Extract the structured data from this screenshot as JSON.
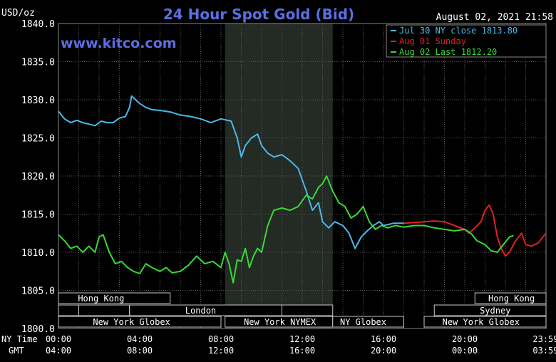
{
  "chart_data": {
    "type": "line",
    "title": "24 Hour Spot Gold (Bid)",
    "watermark": "www.kitco.com",
    "timestamp": "August 02, 2021 21:58",
    "ylabel": "USD/oz",
    "ylim": [
      1800,
      1840
    ],
    "yticks": [
      "1840.0",
      "1835.0",
      "1830.0",
      "1825.0",
      "1820.0",
      "1815.0",
      "1810.0",
      "1805.0",
      "1800.0"
    ],
    "xlim": [
      0,
      24
    ],
    "x_row_labels": {
      "ny": "NY Time",
      "gmt": "GMT"
    },
    "xticks": [
      {
        "h": 0,
        "ny": "00:00",
        "gmt": "04:00"
      },
      {
        "h": 4,
        "ny": "04:00",
        "gmt": "08:00"
      },
      {
        "h": 8,
        "ny": "08:00",
        "gmt": "12:00"
      },
      {
        "h": 12,
        "ny": "12:00",
        "gmt": "16:00"
      },
      {
        "h": 16,
        "ny": "16:00",
        "gmt": "20:00"
      },
      {
        "h": 20,
        "ny": "20:00",
        "gmt": "00:00"
      },
      {
        "h": 23.98,
        "ny": "23:59",
        "gmt": "03:59"
      }
    ],
    "grid": true,
    "legend_position": "top-right",
    "highlight_hours": [
      8.2,
      13.5
    ],
    "colors": {
      "background": "#000000",
      "grid": "#5a5a5a",
      "title": "#5b6ee1",
      "highlight": "#242a24",
      "session": "#000000",
      "session_border": "#c8c8c8",
      "text": "#ffffff"
    },
    "series": [
      {
        "name": "Jul 30 NY close 1813.80",
        "color": "#4db8e8",
        "x": [
          0,
          0.3,
          0.6,
          0.9,
          1.2,
          1.5,
          1.8,
          2.1,
          2.4,
          2.7,
          3.0,
          3.3,
          3.5,
          3.6,
          3.8,
          4.0,
          4.3,
          4.6,
          5.0,
          5.5,
          6.0,
          6.5,
          7.0,
          7.5,
          8.0,
          8.5,
          8.8,
          9.0,
          9.2,
          9.5,
          9.8,
          10.0,
          10.3,
          10.6,
          11.0,
          11.4,
          11.8,
          12.2,
          12.5,
          12.8,
          13.0,
          13.3,
          13.6,
          14.0,
          14.3,
          14.6,
          14.9,
          15.2,
          15.5,
          15.8,
          16.0,
          16.5,
          17.0
        ],
        "y": [
          1828.5,
          1827.5,
          1827.0,
          1827.3,
          1827.0,
          1826.8,
          1826.6,
          1827.2,
          1827.0,
          1827.0,
          1827.6,
          1827.8,
          1829.0,
          1830.5,
          1830.0,
          1829.5,
          1829.0,
          1828.7,
          1828.6,
          1828.4,
          1828.0,
          1827.8,
          1827.5,
          1827.0,
          1827.5,
          1827.2,
          1825.0,
          1822.5,
          1824.0,
          1825.0,
          1825.5,
          1824.0,
          1823.0,
          1822.5,
          1822.8,
          1822.0,
          1821.0,
          1818.0,
          1815.5,
          1816.5,
          1814.0,
          1813.2,
          1814.0,
          1813.5,
          1812.5,
          1810.5,
          1812.0,
          1812.8,
          1813.5,
          1814.0,
          1813.5,
          1813.8,
          1813.8
        ]
      },
      {
        "name": "Aug 01 Sunday",
        "color": "#e02020",
        "x": [
          17.0,
          17.5,
          18.0,
          18.5,
          19.0,
          19.5,
          20.0,
          20.2,
          20.5,
          20.8,
          21.0,
          21.2,
          21.4,
          21.6,
          21.8,
          22.0,
          22.2,
          22.5,
          22.8,
          23.0,
          23.3,
          23.6,
          24.0
        ],
        "y": [
          1813.8,
          1813.9,
          1814.0,
          1814.1,
          1814.0,
          1813.5,
          1813.0,
          1812.5,
          1813.2,
          1814.0,
          1815.5,
          1816.2,
          1815.0,
          1812.0,
          1810.5,
          1809.5,
          1810.0,
          1811.5,
          1812.5,
          1811.0,
          1810.8,
          1811.2,
          1812.5
        ]
      },
      {
        "name": "Aug 02 Last 1812.20",
        "color": "#38d838",
        "x": [
          0,
          0.3,
          0.6,
          0.9,
          1.2,
          1.5,
          1.8,
          2.0,
          2.2,
          2.5,
          2.8,
          3.1,
          3.4,
          3.7,
          4.0,
          4.3,
          4.6,
          5.0,
          5.3,
          5.6,
          6.0,
          6.4,
          6.8,
          7.2,
          7.6,
          8.0,
          8.2,
          8.4,
          8.6,
          8.8,
          9.0,
          9.2,
          9.4,
          9.6,
          9.8,
          10.0,
          10.3,
          10.6,
          11.0,
          11.4,
          11.8,
          12.2,
          12.5,
          12.8,
          13.0,
          13.2,
          13.5,
          13.8,
          14.1,
          14.4,
          14.7,
          15.0,
          15.3,
          15.6,
          15.9,
          16.2,
          16.6,
          17.0,
          17.5,
          18.0,
          18.5,
          19.0,
          19.5,
          20.0,
          20.3,
          20.6,
          21.0,
          21.3,
          21.6,
          21.9,
          22.2,
          22.4
        ],
        "y": [
          1812.3,
          1811.5,
          1810.5,
          1810.8,
          1810.0,
          1810.8,
          1810.0,
          1812.0,
          1812.3,
          1810.0,
          1808.5,
          1808.8,
          1808.0,
          1807.5,
          1807.2,
          1808.5,
          1808.0,
          1807.5,
          1808.0,
          1807.3,
          1807.5,
          1808.3,
          1809.5,
          1808.5,
          1808.8,
          1808.0,
          1810.0,
          1808.5,
          1806.0,
          1809.0,
          1808.8,
          1810.5,
          1808.0,
          1809.5,
          1810.5,
          1810.0,
          1813.5,
          1815.5,
          1815.8,
          1815.5,
          1816.0,
          1817.5,
          1817.0,
          1818.5,
          1819.0,
          1820.0,
          1818.0,
          1816.5,
          1816.0,
          1814.5,
          1815.0,
          1816.0,
          1814.0,
          1813.0,
          1813.5,
          1813.2,
          1813.5,
          1813.3,
          1813.5,
          1813.5,
          1813.2,
          1813.0,
          1812.8,
          1813.0,
          1812.5,
          1811.5,
          1811.0,
          1810.2,
          1810.0,
          1811.0,
          1812.0,
          1812.2
        ]
      }
    ],
    "sessions": [
      {
        "label": "Hong Kong",
        "start": 0,
        "end": 5.5,
        "row": 0,
        "text_at": 2.1
      },
      {
        "label": "",
        "start": 0,
        "end": 1.0,
        "row": 1
      },
      {
        "label": "",
        "start": 1.0,
        "end": 3.5,
        "row": 1
      },
      {
        "label": "",
        "start": 3.5,
        "end": 5.5,
        "row": 1
      },
      {
        "label": "London",
        "start": 3.5,
        "end": 11.0,
        "row": 1,
        "text_at": 7.0
      },
      {
        "label": "",
        "start": 11.0,
        "end": 13.5,
        "row": 1
      },
      {
        "label": "",
        "start": 0,
        "end": 8.0,
        "row": 2
      },
      {
        "label": "New York Globex",
        "start": 0,
        "end": 8.0,
        "row": 2,
        "text_at": 3.6
      },
      {
        "label": "New York NYMEX",
        "start": 8.2,
        "end": 13.5,
        "row": 2,
        "text_at": 10.9
      },
      {
        "label": "NY Globex",
        "start": 13.5,
        "end": 17.0,
        "row": 2,
        "text_at": 15.0
      },
      {
        "label": "Hong Kong",
        "start": 20.5,
        "end": 24.0,
        "row": 0,
        "text_at": 22.3
      },
      {
        "label": "Sydney",
        "start": 18.5,
        "end": 24.0,
        "row": 1,
        "text_at": 21.5
      },
      {
        "label": "New York Globex",
        "start": 18.0,
        "end": 24.0,
        "row": 2,
        "text_at": 20.8
      }
    ]
  }
}
